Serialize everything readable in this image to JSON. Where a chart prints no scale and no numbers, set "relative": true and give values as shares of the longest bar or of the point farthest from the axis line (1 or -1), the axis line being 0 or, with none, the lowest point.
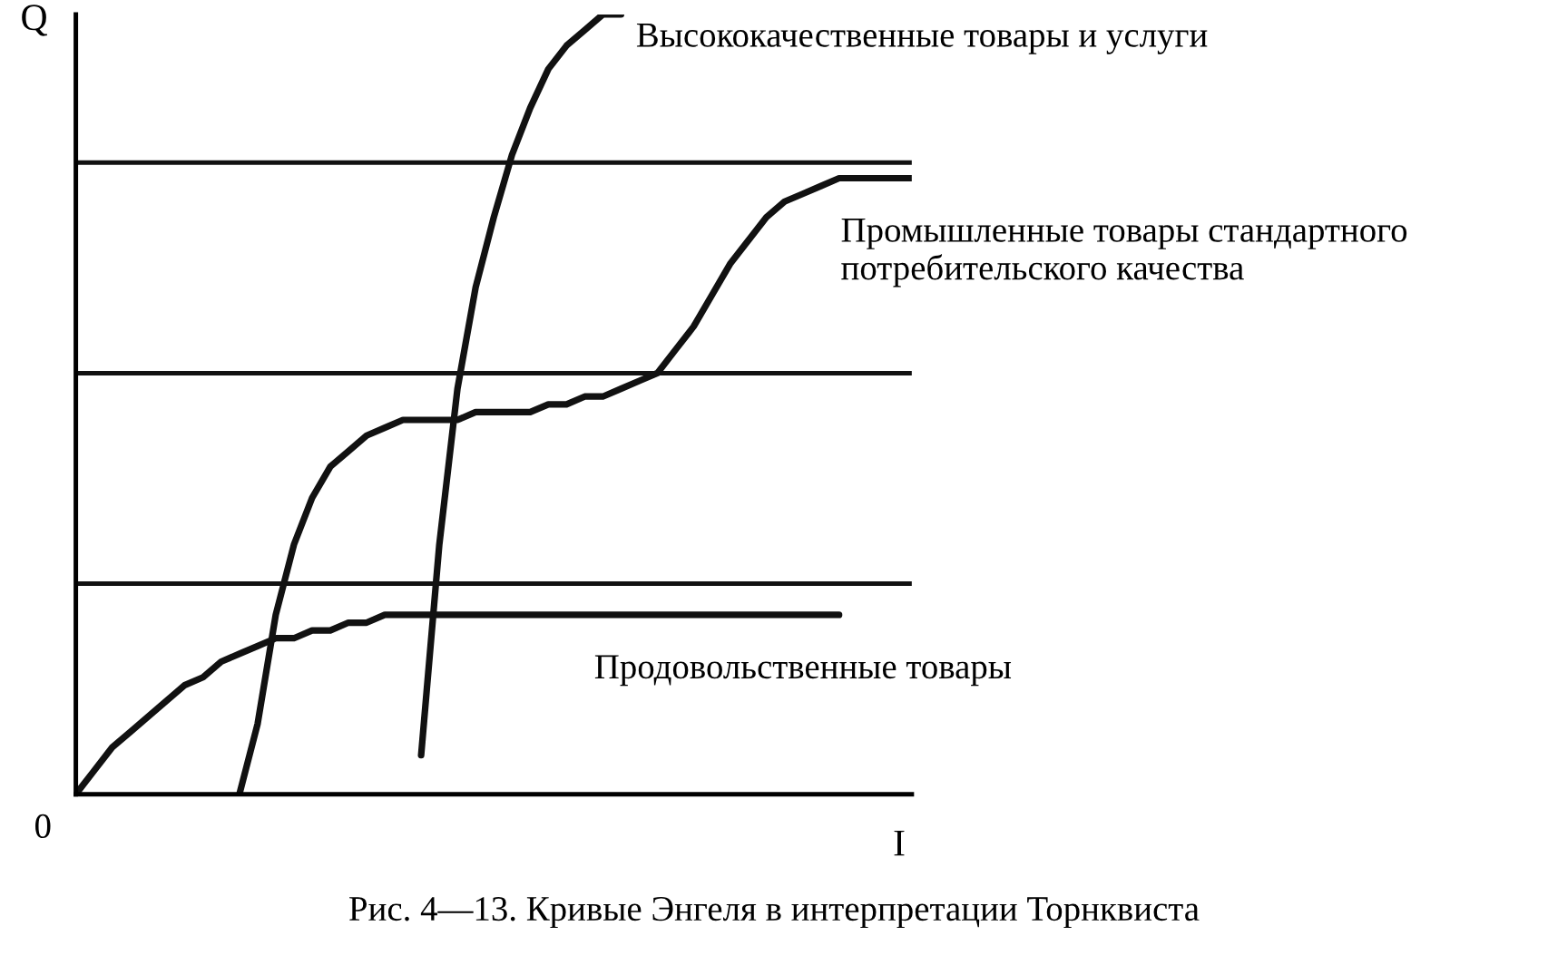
{
  "chart_data": {
    "type": "line",
    "relative": true,
    "xlabel": "I",
    "ylabel": "Q",
    "categories": [
      null,
      null,
      null,
      null,
      null,
      null,
      null,
      null,
      null,
      null,
      null,
      null,
      null,
      null,
      null,
      null,
      null,
      null,
      null,
      null,
      null,
      null,
      null,
      null,
      null,
      null,
      null,
      null,
      null,
      null,
      null,
      null,
      null,
      null,
      null,
      null,
      null,
      null,
      null,
      null,
      null,
      null,
      null,
      null,
      null,
      null,
      null
    ],
    "series": [
      {
        "name": "Продовольственные товары",
        "color": "#111111",
        "values": [
          0,
          0.03,
          0.06,
          0.08,
          0.1,
          0.12,
          0.14,
          0.15,
          0.17,
          0.18,
          0.19,
          0.2,
          0.2,
          0.21,
          0.21,
          0.22,
          0.22,
          0.23,
          0.23,
          0.23,
          0.23,
          0.23,
          0.23,
          0.23,
          0.23,
          0.23,
          0.23,
          0.23,
          0.23,
          0.23,
          0.23,
          0.23,
          0.23,
          0.23,
          0.23,
          0.23,
          0.23,
          0.23,
          0.23,
          0.23,
          0.23,
          0.23,
          0.23,
          null,
          null,
          null,
          null
        ]
      },
      {
        "name": "Промышленные товары стандартного потребительского качества",
        "color": "#111111",
        "values": [
          null,
          null,
          null,
          null,
          null,
          null,
          null,
          null,
          null,
          0,
          0.09,
          0.23,
          0.32,
          0.38,
          0.42,
          0.44,
          0.46,
          0.47,
          0.48,
          0.48,
          0.48,
          0.48,
          0.49,
          0.49,
          0.49,
          0.49,
          0.5,
          0.5,
          0.51,
          0.51,
          0.52,
          0.53,
          0.54,
          0.57,
          0.6,
          0.64,
          0.68,
          0.71,
          0.74,
          0.76,
          0.77,
          0.78,
          0.79,
          0.79,
          0.79,
          0.79,
          0.79
        ]
      },
      {
        "name": "Высококачественные товары и услуги",
        "color": "#111111",
        "values": [
          null,
          null,
          null,
          null,
          null,
          null,
          null,
          null,
          null,
          null,
          null,
          null,
          null,
          null,
          null,
          null,
          null,
          null,
          null,
          0.05,
          0.32,
          0.52,
          0.65,
          0.74,
          0.82,
          0.88,
          0.93,
          0.96,
          0.98,
          1.0,
          1.0,
          null,
          null,
          null,
          null,
          null,
          null,
          null,
          null,
          null,
          null,
          null,
          null,
          null,
          null,
          null,
          null
        ]
      }
    ],
    "ref_lines": [
      {
        "axis": "y",
        "value": 0.81,
        "color": "#111111"
      },
      {
        "axis": "y",
        "value": 0.54,
        "color": "#111111"
      },
      {
        "axis": "y",
        "value": 0.27,
        "color": "#111111"
      }
    ],
    "annotations": [
      "0",
      "Рис. 4—13. Кривые Энгеля в интерпретации Торнквиста"
    ]
  }
}
